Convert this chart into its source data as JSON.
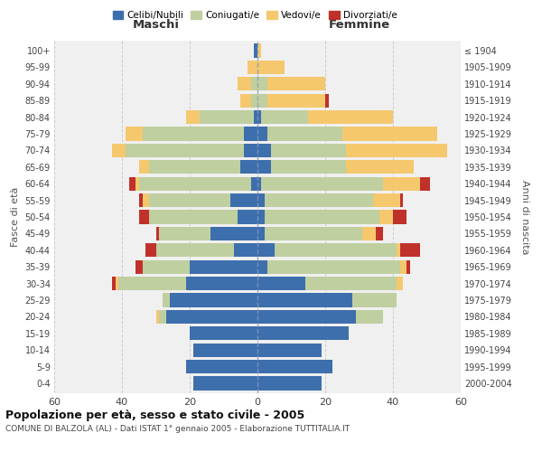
{
  "age_groups": [
    "0-4",
    "5-9",
    "10-14",
    "15-19",
    "20-24",
    "25-29",
    "30-34",
    "35-39",
    "40-44",
    "45-49",
    "50-54",
    "55-59",
    "60-64",
    "65-69",
    "70-74",
    "75-79",
    "80-84",
    "85-89",
    "90-94",
    "95-99",
    "100+"
  ],
  "birth_years": [
    "2000-2004",
    "1995-1999",
    "1990-1994",
    "1985-1989",
    "1980-1984",
    "1975-1979",
    "1970-1974",
    "1965-1969",
    "1960-1964",
    "1955-1959",
    "1950-1954",
    "1945-1949",
    "1940-1944",
    "1935-1939",
    "1930-1934",
    "1925-1929",
    "1920-1924",
    "1915-1919",
    "1910-1914",
    "1905-1909",
    "≤ 1904"
  ],
  "maschi": {
    "celibi": [
      19,
      21,
      19,
      20,
      27,
      26,
      21,
      20,
      7,
      14,
      6,
      8,
      2,
      5,
      4,
      4,
      1,
      0,
      0,
      0,
      1
    ],
    "coniugati": [
      0,
      0,
      0,
      0,
      2,
      2,
      20,
      14,
      23,
      15,
      26,
      24,
      33,
      27,
      35,
      30,
      16,
      2,
      2,
      0,
      0
    ],
    "vedovi": [
      0,
      0,
      0,
      0,
      1,
      0,
      1,
      0,
      0,
      0,
      0,
      2,
      1,
      3,
      4,
      5,
      4,
      3,
      4,
      3,
      0
    ],
    "divorziati": [
      0,
      0,
      0,
      0,
      0,
      0,
      1,
      2,
      3,
      1,
      3,
      1,
      2,
      0,
      0,
      0,
      0,
      0,
      0,
      0,
      0
    ]
  },
  "femmine": {
    "nubili": [
      19,
      22,
      19,
      27,
      29,
      28,
      14,
      3,
      5,
      2,
      2,
      2,
      1,
      4,
      4,
      3,
      1,
      0,
      0,
      0,
      0
    ],
    "coniugate": [
      0,
      0,
      0,
      0,
      8,
      13,
      27,
      39,
      36,
      29,
      34,
      32,
      36,
      22,
      22,
      22,
      14,
      3,
      3,
      0,
      0
    ],
    "vedove": [
      0,
      0,
      0,
      0,
      0,
      0,
      2,
      2,
      1,
      4,
      4,
      8,
      11,
      20,
      30,
      28,
      25,
      17,
      17,
      8,
      1
    ],
    "divorziate": [
      0,
      0,
      0,
      0,
      0,
      0,
      0,
      1,
      6,
      2,
      4,
      1,
      3,
      0,
      0,
      0,
      0,
      1,
      0,
      0,
      0
    ]
  },
  "colors": {
    "celibi": "#3D6FAD",
    "coniugati": "#BFCFA0",
    "vedovi": "#F5C86E",
    "divorziati": "#C0312B"
  },
  "title": "Popolazione per età, sesso e stato civile - 2005",
  "subtitle": "COMUNE DI BALZOLA (AL) - Dati ISTAT 1° gennaio 2005 - Elaborazione TUTTITALIA.IT",
  "xlabel_left": "Maschi",
  "xlabel_right": "Femmine",
  "ylabel_left": "Fasce di età",
  "ylabel_right": "Anni di nascita",
  "xlim": 60,
  "bg_color": "#f0f0f0",
  "grid_color": "#cccccc"
}
